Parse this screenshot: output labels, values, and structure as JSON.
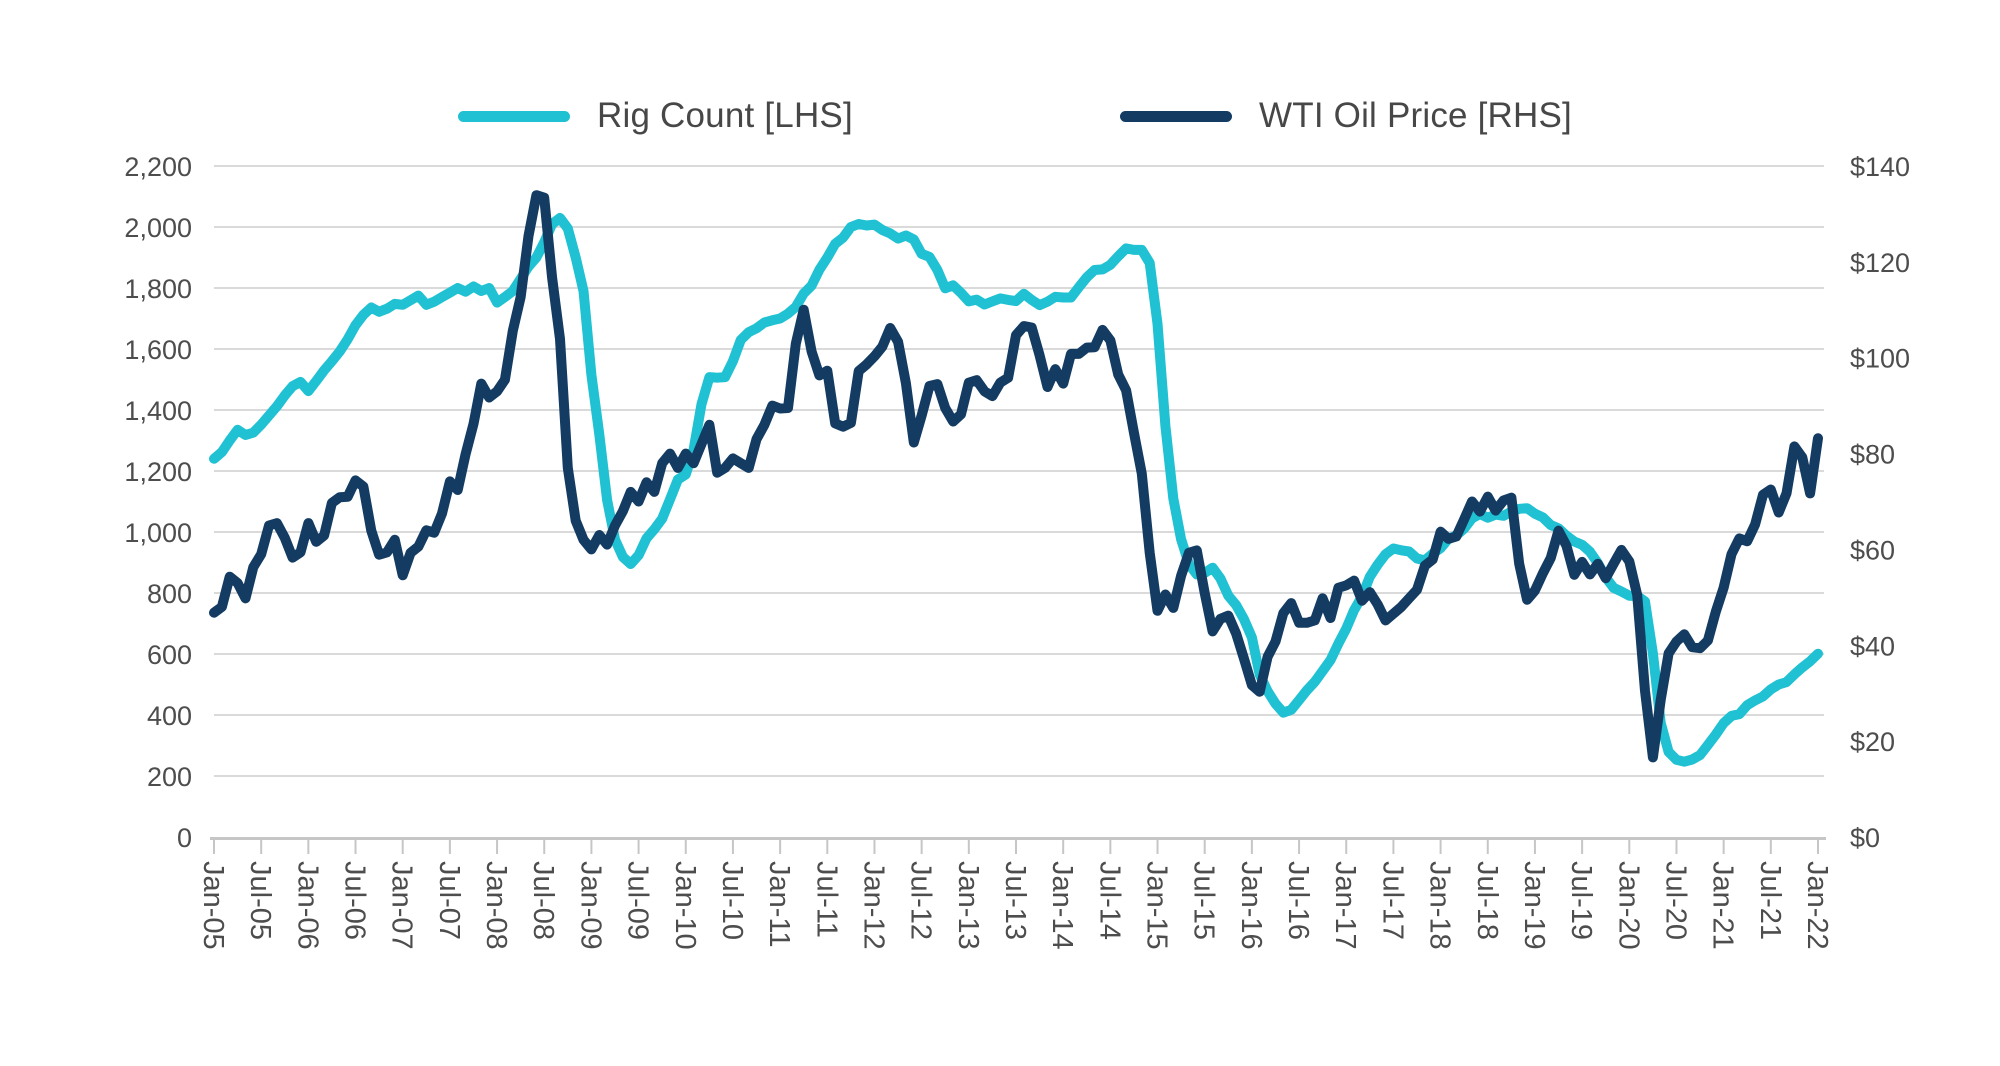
{
  "legend": {
    "items": [
      {
        "label": "Rig Count [LHS]"
      },
      {
        "label": "WTI Oil Price [RHS]"
      }
    ]
  },
  "colors": {
    "rig_count": "#1fc1d2",
    "wti": "#143c63",
    "grid": "#dadada",
    "axis_line": "#c6c6c6",
    "axis_text": "#4d4d4d",
    "legend_text": "#474747",
    "background": "#ffffff"
  },
  "chart_data": {
    "type": "line",
    "frequency": "monthly",
    "x_start": "Jan-05",
    "x_end": "Jan-22",
    "grid": "horizontal",
    "legend_position": "top",
    "x_tick_labels": [
      "Jan-05",
      "Jul-05",
      "Jan-06",
      "Jul-06",
      "Jan-07",
      "Jul-07",
      "Jan-08",
      "Jul-08",
      "Jan-09",
      "Jul-09",
      "Jan-10",
      "Jul-10",
      "Jan-11",
      "Jul-11",
      "Jan-12",
      "Jul-12",
      "Jan-13",
      "Jul-13",
      "Jan-14",
      "Jul-14",
      "Jan-15",
      "Jul-15",
      "Jan-16",
      "Jul-16",
      "Jan-17",
      "Jul-17",
      "Jan-18",
      "Jul-18",
      "Jan-19",
      "Jul-19",
      "Jan-20",
      "Jul-20",
      "Jan-21",
      "Jul-21",
      "Jan-22"
    ],
    "left_axis": {
      "min": 0,
      "max": 2200,
      "step": 200,
      "tick_labels": [
        "0",
        "200",
        "400",
        "600",
        "800",
        "1,000",
        "1,200",
        "1,400",
        "1,600",
        "1,800",
        "2,000",
        "2,200"
      ]
    },
    "right_axis": {
      "min": 0,
      "max": 140,
      "step": 20,
      "tick_labels": [
        "$0",
        "$20",
        "$40",
        "$60",
        "$80",
        "$100",
        "$120",
        "$140"
      ]
    },
    "series": [
      {
        "name": "Rig Count [LHS]",
        "axis": "left",
        "color": "#1fc1d2",
        "values": [
          1240,
          1262,
          1300,
          1335,
          1318,
          1326,
          1352,
          1382,
          1412,
          1448,
          1478,
          1492,
          1462,
          1495,
          1530,
          1560,
          1592,
          1632,
          1678,
          1712,
          1736,
          1722,
          1732,
          1748,
          1745,
          1760,
          1775,
          1745,
          1755,
          1770,
          1785,
          1800,
          1788,
          1805,
          1790,
          1800,
          1752,
          1770,
          1790,
          1830,
          1870,
          1900,
          1950,
          2010,
          2030,
          1995,
          1900,
          1790,
          1515,
          1320,
          1105,
          975,
          918,
          895,
          924,
          979,
          1009,
          1044,
          1107,
          1172,
          1189,
          1270,
          1419,
          1508,
          1506,
          1508,
          1560,
          1630,
          1655,
          1668,
          1687,
          1694,
          1700,
          1716,
          1738,
          1782,
          1808,
          1860,
          1900,
          1945,
          1965,
          2000,
          2010,
          2005,
          2008,
          1990,
          1979,
          1962,
          1972,
          1959,
          1912,
          1902,
          1859,
          1799,
          1809,
          1784,
          1756,
          1762,
          1746,
          1756,
          1766,
          1761,
          1757,
          1781,
          1761,
          1744,
          1755,
          1771,
          1769,
          1769,
          1803,
          1835,
          1859,
          1861,
          1876,
          1904,
          1930,
          1925,
          1925,
          1882,
          1683,
          1348,
          1110,
          976,
          894,
          861,
          866,
          883,
          848,
          791,
          760,
          714,
          654,
          532,
          478,
          437,
          408,
          417,
          449,
          481,
          509,
          544,
          580,
          634,
          683,
          744,
          789,
          853,
          893,
          927,
          946,
          940,
          936,
          913,
          907,
          929,
          947,
          978,
          989,
          1011,
          1045,
          1059,
          1047,
          1057,
          1053,
          1067,
          1076,
          1078,
          1060,
          1048,
          1023,
          1012,
          988,
          969,
          958,
          935,
          898,
          851,
          817,
          805,
          791,
          790,
          772,
          602,
          374,
          279,
          253,
          247,
          254,
          269,
          302,
          336,
          373,
          397,
          403,
          432,
          448,
          461,
          484,
          500,
          508,
          533,
          556,
          576,
          601
        ]
      },
      {
        "name": "WTI Oil Price [RHS]",
        "axis": "right",
        "color": "#143c63",
        "values": [
          46.8,
          48.0,
          54.3,
          53.0,
          49.8,
          56.3,
          59.0,
          65.0,
          65.5,
          62.4,
          58.3,
          59.4,
          65.5,
          61.6,
          62.9,
          69.7,
          70.9,
          71.0,
          74.4,
          73.1,
          63.9,
          58.9,
          59.4,
          62.0,
          54.6,
          59.3,
          60.6,
          64.0,
          63.5,
          67.5,
          74.2,
          72.4,
          79.9,
          86.2,
          94.6,
          91.7,
          93.0,
          95.4,
          105.6,
          112.6,
          125.4,
          133.9,
          133.4,
          116.7,
          103.9,
          77.0,
          66.0,
          62.0,
          60.0,
          63.0,
          61.0,
          65.0,
          68.0,
          72.0,
          70.0,
          74.0,
          72.0,
          78.0,
          80.0,
          77.0,
          80.0,
          78.0,
          82.0,
          86.0,
          76.0,
          77.0,
          79.0,
          78.0,
          77.0,
          83.0,
          86.0,
          90.0,
          89.4,
          89.5,
          102.9,
          110.0,
          101.3,
          96.3,
          97.3,
          86.3,
          85.6,
          86.4,
          97.2,
          98.6,
          100.3,
          102.3,
          106.2,
          103.3,
          94.7,
          82.3,
          87.9,
          94.1,
          94.5,
          89.5,
          86.7,
          88.2,
          94.8,
          95.3,
          93.0,
          92.0,
          94.8,
          95.8,
          104.7,
          106.6,
          106.3,
          100.5,
          93.9,
          97.6,
          94.6,
          100.8,
          100.8,
          102.1,
          102.2,
          105.8,
          103.6,
          96.5,
          93.2,
          84.4,
          75.8,
          59.3,
          47.2,
          50.6,
          47.8,
          54.5,
          59.3,
          59.8,
          50.9,
          42.9,
          45.5,
          46.2,
          42.4,
          37.2,
          31.7,
          30.3,
          37.6,
          40.8,
          46.7,
          48.8,
          44.7,
          44.7,
          45.2,
          49.8,
          45.7,
          52.0,
          52.5,
          53.5,
          49.3,
          51.1,
          48.5,
          45.2,
          46.6,
          48.0,
          49.8,
          51.6,
          56.6,
          57.9,
          63.7,
          62.2,
          62.7,
          66.3,
          70.0,
          67.9,
          71.0,
          68.1,
          70.2,
          70.8,
          57.0,
          49.5,
          51.4,
          55.0,
          58.2,
          63.9,
          60.8,
          54.7,
          57.4,
          54.8,
          57.0,
          54.0,
          57.0,
          59.9,
          57.5,
          50.5,
          30.5,
          16.6,
          28.6,
          38.3,
          40.8,
          42.3,
          39.6,
          39.4,
          41.0,
          47.0,
          52.0,
          59.0,
          62.3,
          61.7,
          65.2,
          71.4,
          72.5,
          67.7,
          71.7,
          81.5,
          79.2,
          71.7,
          83.2
        ]
      }
    ]
  }
}
